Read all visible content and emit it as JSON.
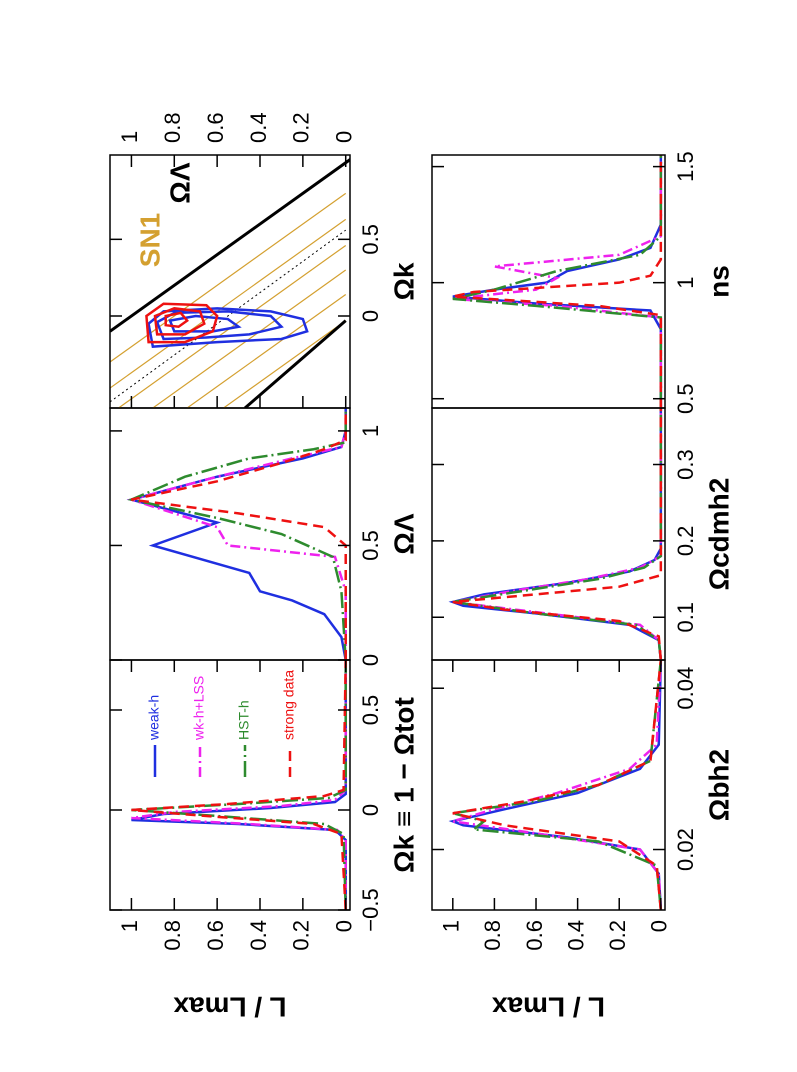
{
  "chart_data": [
    {
      "type": "line",
      "xlabel": "Ωk ≡ 1 − Ωtot",
      "ylabel": "L / Lmax",
      "xlim": [
        -0.5,
        0.75
      ],
      "xticks": [
        {
          "value": -0.5,
          "label": "−0.5"
        },
        0,
        0.5
      ],
      "ylim": [
        -0.02,
        1.1
      ],
      "yticks": [
        0,
        0.2,
        0.4,
        0.6,
        0.8,
        1
      ],
      "series": [
        {
          "name": "weak-h",
          "color": "#1f2fe0",
          "style": "solid",
          "x": [
            -0.5,
            -0.15,
            -0.1,
            -0.07,
            -0.05,
            -0.02,
            0.01,
            0.04,
            0.08,
            0.75
          ],
          "values": [
            0,
            0,
            0.05,
            0.5,
            1,
            0.85,
            0.35,
            0.05,
            0,
            0
          ]
        },
        {
          "name": "wk-h+LSS",
          "color": "#ee22ee",
          "style": "dashdot",
          "x": [
            -0.5,
            -0.15,
            -0.1,
            -0.07,
            -0.04,
            -0.01,
            0.02,
            0.05,
            0.1,
            0.75
          ],
          "values": [
            0,
            0,
            0.04,
            0.45,
            1,
            0.8,
            0.3,
            0.05,
            0,
            0
          ]
        },
        {
          "name": "HST-h",
          "color": "#2e8b2e",
          "style": "longdashdot",
          "x": [
            -0.5,
            -0.12,
            -0.07,
            -0.03,
            0,
            0.03,
            0.06,
            0.1,
            0.75
          ],
          "values": [
            0,
            0.01,
            0.1,
            0.6,
            1,
            0.5,
            0.08,
            0,
            0
          ]
        },
        {
          "name": "strong data",
          "color": "#ee1111",
          "style": "dashed",
          "x": [
            -0.5,
            -0.12,
            -0.07,
            -0.03,
            0,
            0.03,
            0.07,
            0.1,
            0.75
          ],
          "values": [
            0,
            0.02,
            0.15,
            0.65,
            1,
            0.55,
            0.1,
            0.01,
            0
          ]
        }
      ]
    },
    {
      "type": "line",
      "xlabel": "ΩΛ",
      "xlim": [
        0,
        1.1
      ],
      "xticks": [
        0,
        0.5,
        1
      ],
      "ylim": [
        -0.02,
        1.1
      ],
      "series": [
        {
          "color": "#1f2fe0",
          "style": "solid",
          "x": [
            0,
            0.1,
            0.2,
            0.26,
            0.3,
            0.38,
            0.5,
            0.6,
            0.7,
            0.8,
            0.88,
            0.93,
            1.0,
            1.1
          ],
          "values": [
            0,
            0.02,
            0.1,
            0.25,
            0.4,
            0.45,
            0.9,
            0.6,
            1,
            0.6,
            0.2,
            0.02,
            0,
            0
          ]
        },
        {
          "color": "#ee22ee",
          "style": "dashdot",
          "x": [
            0,
            0.3,
            0.45,
            0.5,
            0.58,
            0.7,
            0.8,
            0.88,
            0.93,
            1.0,
            1.1
          ],
          "values": [
            0,
            0,
            0.05,
            0.55,
            0.6,
            1,
            0.6,
            0.25,
            0.02,
            0,
            0
          ]
        },
        {
          "color": "#2e8b2e",
          "style": "longdashdot",
          "x": [
            0,
            0.3,
            0.45,
            0.55,
            0.62,
            0.7,
            0.8,
            0.88,
            0.92,
            0.95,
            1.1
          ],
          "values": [
            0,
            0.02,
            0.06,
            0.3,
            0.6,
            1,
            0.75,
            0.45,
            0.15,
            0,
            0
          ]
        },
        {
          "color": "#ee1111",
          "style": "dashed",
          "x": [
            0,
            0.5,
            0.58,
            0.64,
            0.7,
            0.78,
            0.86,
            0.92,
            0.96,
            1.1
          ],
          "values": [
            0,
            0,
            0.1,
            0.5,
            1,
            0.6,
            0.3,
            0.1,
            0,
            0
          ]
        }
      ]
    },
    {
      "type": "contour",
      "xlabel": "Ωk",
      "ylabel": "ΩΛ",
      "annotation": "SN1",
      "annotation_color": "#d4a030",
      "xlim": [
        -0.6,
        1.05
      ],
      "xticks": [
        0,
        0.5
      ],
      "ylim": [
        -0.02,
        1.1
      ],
      "yticks": [
        0,
        0.2,
        0.4,
        0.6,
        0.8,
        1
      ],
      "yaxis_side": "right",
      "lines": [
        {
          "color": "#d4a030",
          "width": 1.2,
          "style": "solid",
          "x": [
            -1.13,
            -0.03
          ],
          "y": [
            1.1,
            0
          ]
        },
        {
          "color": "#d4a030",
          "width": 1.2,
          "style": "solid",
          "x": [
            -0.96,
            0.14
          ],
          "y": [
            1.1,
            0
          ]
        },
        {
          "color": "#d4a030",
          "width": 1.2,
          "style": "solid",
          "x": [
            -0.8,
            0.3
          ],
          "y": [
            1.1,
            0
          ]
        },
        {
          "color": "#d4a030",
          "width": 1.2,
          "style": "solid",
          "x": [
            -0.64,
            0.46
          ],
          "y": [
            1.1,
            0
          ]
        },
        {
          "color": "#d4a030",
          "width": 1.2,
          "style": "solid",
          "x": [
            -0.47,
            0.63
          ],
          "y": [
            1.1,
            0
          ]
        },
        {
          "color": "#d4a030",
          "width": 1.2,
          "style": "solid",
          "x": [
            -0.3,
            0.8
          ],
          "y": [
            1.1,
            0
          ]
        },
        {
          "color": "#000000",
          "width": 1,
          "style": "dotted",
          "x": [
            -0.56,
            0.56
          ],
          "y": [
            1.1,
            0
          ]
        },
        {
          "color": "#000000",
          "width": 3,
          "style": "solid",
          "x": [
            -0.1,
            1.05
          ],
          "y": [
            1.1,
            -0.05
          ]
        },
        {
          "color": "#000000",
          "width": 3,
          "style": "solid",
          "x": [
            -0.6,
            -0.03
          ],
          "y": [
            0.47,
            0
          ]
        }
      ],
      "contours": [
        {
          "color": "#1f2fe0",
          "x": [
            -0.2,
            -0.05,
            0.03,
            0.05,
            0.03,
            -0.02,
            -0.1,
            -0.15,
            -0.17
          ],
          "y": [
            0.9,
            0.92,
            0.85,
            0.6,
            0.35,
            0.2,
            0.18,
            0.3,
            0.6
          ]
        },
        {
          "color": "#1f2fe0",
          "x": [
            -0.15,
            -0.04,
            0.02,
            0.03,
            0.0,
            -0.07,
            -0.12,
            -0.14
          ],
          "y": [
            0.85,
            0.88,
            0.8,
            0.55,
            0.35,
            0.3,
            0.45,
            0.65
          ]
        },
        {
          "color": "#1f2fe0",
          "x": [
            -0.1,
            -0.03,
            0.0,
            -0.02,
            -0.07,
            -0.1
          ],
          "y": [
            0.8,
            0.82,
            0.7,
            0.55,
            0.5,
            0.62
          ]
        },
        {
          "color": "#ee1111",
          "x": [
            -0.17,
            0.0,
            0.08,
            0.07,
            0.0,
            -0.1,
            -0.17
          ],
          "y": [
            0.92,
            0.93,
            0.85,
            0.65,
            0.6,
            0.62,
            0.75
          ]
        },
        {
          "color": "#ee1111",
          "x": [
            -0.12,
            0.0,
            0.05,
            0.03,
            -0.05,
            -0.12
          ],
          "y": [
            0.88,
            0.89,
            0.8,
            0.68,
            0.66,
            0.75
          ]
        },
        {
          "color": "#ee1111",
          "x": [
            -0.06,
            0.0,
            0.02,
            -0.03,
            -0.07
          ],
          "y": [
            0.84,
            0.84,
            0.77,
            0.74,
            0.78
          ]
        }
      ]
    },
    {
      "type": "line",
      "xlabel": "Ωbh2",
      "ylabel": "L / Lmax",
      "xlim": [
        0.0125,
        0.0435
      ],
      "xticks": [
        0.02,
        0.04
      ],
      "ylim": [
        -0.02,
        1.1
      ],
      "yticks": [
        0,
        0.2,
        0.4,
        0.6,
        0.8,
        1
      ],
      "series": [
        {
          "color": "#1f2fe0",
          "style": "solid",
          "x": [
            0.0125,
            0.017,
            0.02,
            0.0215,
            0.023,
            0.0235,
            0.025,
            0.027,
            0.03,
            0.033,
            0.0435
          ],
          "values": [
            0,
            0.01,
            0.1,
            0.45,
            0.95,
            1,
            0.75,
            0.4,
            0.1,
            0.01,
            0
          ]
        },
        {
          "color": "#ee22ee",
          "style": "dashdot",
          "x": [
            0.0125,
            0.017,
            0.02,
            0.022,
            0.0235,
            0.025,
            0.027,
            0.03,
            0.033,
            0.0435
          ],
          "values": [
            0,
            0.01,
            0.1,
            0.6,
            1,
            0.8,
            0.5,
            0.15,
            0.02,
            0
          ]
        },
        {
          "color": "#2e8b2e",
          "style": "longdashdot",
          "x": [
            0.0125,
            0.018,
            0.021,
            0.0225,
            0.0235,
            0.0245,
            0.026,
            0.028,
            0.031,
            0.0435
          ],
          "values": [
            0,
            0.02,
            0.3,
            0.9,
            0.85,
            1,
            0.6,
            0.3,
            0.05,
            0
          ]
        },
        {
          "color": "#ee1111",
          "style": "dashed",
          "x": [
            0.0125,
            0.018,
            0.021,
            0.023,
            0.0245,
            0.026,
            0.028,
            0.031,
            0.0435
          ],
          "values": [
            0,
            0.02,
            0.2,
            0.75,
            1,
            0.65,
            0.3,
            0.05,
            0
          ]
        }
      ]
    },
    {
      "type": "line",
      "xlabel": "Ωcdmh2",
      "xlim": [
        0.044,
        0.374
      ],
      "xticks": [
        0.1,
        0.2,
        0.3
      ],
      "ylim": [
        -0.02,
        1.1
      ],
      "series": [
        {
          "color": "#1f2fe0",
          "style": "solid",
          "x": [
            0.044,
            0.07,
            0.09,
            0.105,
            0.115,
            0.12,
            0.13,
            0.145,
            0.16,
            0.175,
            0.19,
            0.374
          ],
          "values": [
            0,
            0.01,
            0.15,
            0.6,
            0.95,
            1,
            0.85,
            0.45,
            0.15,
            0.03,
            0,
            0
          ]
        },
        {
          "color": "#ee22ee",
          "style": "dashdot",
          "x": [
            0.044,
            0.07,
            0.09,
            0.105,
            0.12,
            0.135,
            0.15,
            0.165,
            0.18,
            0.374
          ],
          "values": [
            0,
            0.01,
            0.1,
            0.55,
            1,
            0.7,
            0.35,
            0.1,
            0,
            0
          ]
        },
        {
          "color": "#2e8b2e",
          "style": "longdashdot",
          "x": [
            0.044,
            0.07,
            0.09,
            0.105,
            0.12,
            0.135,
            0.15,
            0.165,
            0.18,
            0.374
          ],
          "values": [
            0,
            0.01,
            0.12,
            0.6,
            1,
            0.65,
            0.3,
            0.08,
            0,
            0
          ]
        },
        {
          "color": "#ee1111",
          "style": "dashed",
          "x": [
            0.044,
            0.075,
            0.095,
            0.11,
            0.12,
            0.13,
            0.14,
            0.155,
            0.374
          ],
          "values": [
            0,
            0.01,
            0.2,
            0.75,
            1,
            0.6,
            0.2,
            0,
            0
          ]
        }
      ]
    },
    {
      "type": "line",
      "xlabel": "ns",
      "xlim": [
        0.46,
        1.55
      ],
      "xticks": [
        0.5,
        1,
        1.5
      ],
      "ylim": [
        -0.02,
        1.1
      ],
      "series": [
        {
          "color": "#1f2fe0",
          "style": "solid",
          "x": [
            0.46,
            0.8,
            0.88,
            0.91,
            0.94,
            0.97,
            1.0,
            1.05,
            1.1,
            1.15,
            1.25,
            1.55
          ],
          "values": [
            0,
            0,
            0.05,
            0.6,
            1,
            0.8,
            0.55,
            0.45,
            0.2,
            0.05,
            0,
            0
          ]
        },
        {
          "color": "#ee22ee",
          "style": "dashdot",
          "x": [
            0.46,
            0.85,
            0.9,
            0.93,
            0.97,
            1.02,
            1.07,
            1.12,
            1.2,
            1.55
          ],
          "values": [
            0,
            0,
            0.5,
            1,
            0.6,
            0.5,
            0.8,
            0.2,
            0,
            0
          ]
        },
        {
          "color": "#2e8b2e",
          "style": "longdashdot",
          "x": [
            0.46,
            0.85,
            0.9,
            0.93,
            0.97,
            1.05,
            1.12,
            1.2,
            1.55
          ],
          "values": [
            0,
            0,
            0.6,
            1,
            0.8,
            0.5,
            0.1,
            0,
            0
          ]
        },
        {
          "color": "#ee1111",
          "style": "dashed",
          "x": [
            0.46,
            0.86,
            0.9,
            0.94,
            0.96,
            1.0,
            1.03,
            1.1,
            1.55
          ],
          "values": [
            0,
            0,
            0.3,
            1,
            0.9,
            0.2,
            0.05,
            0,
            0
          ]
        }
      ]
    }
  ]
}
